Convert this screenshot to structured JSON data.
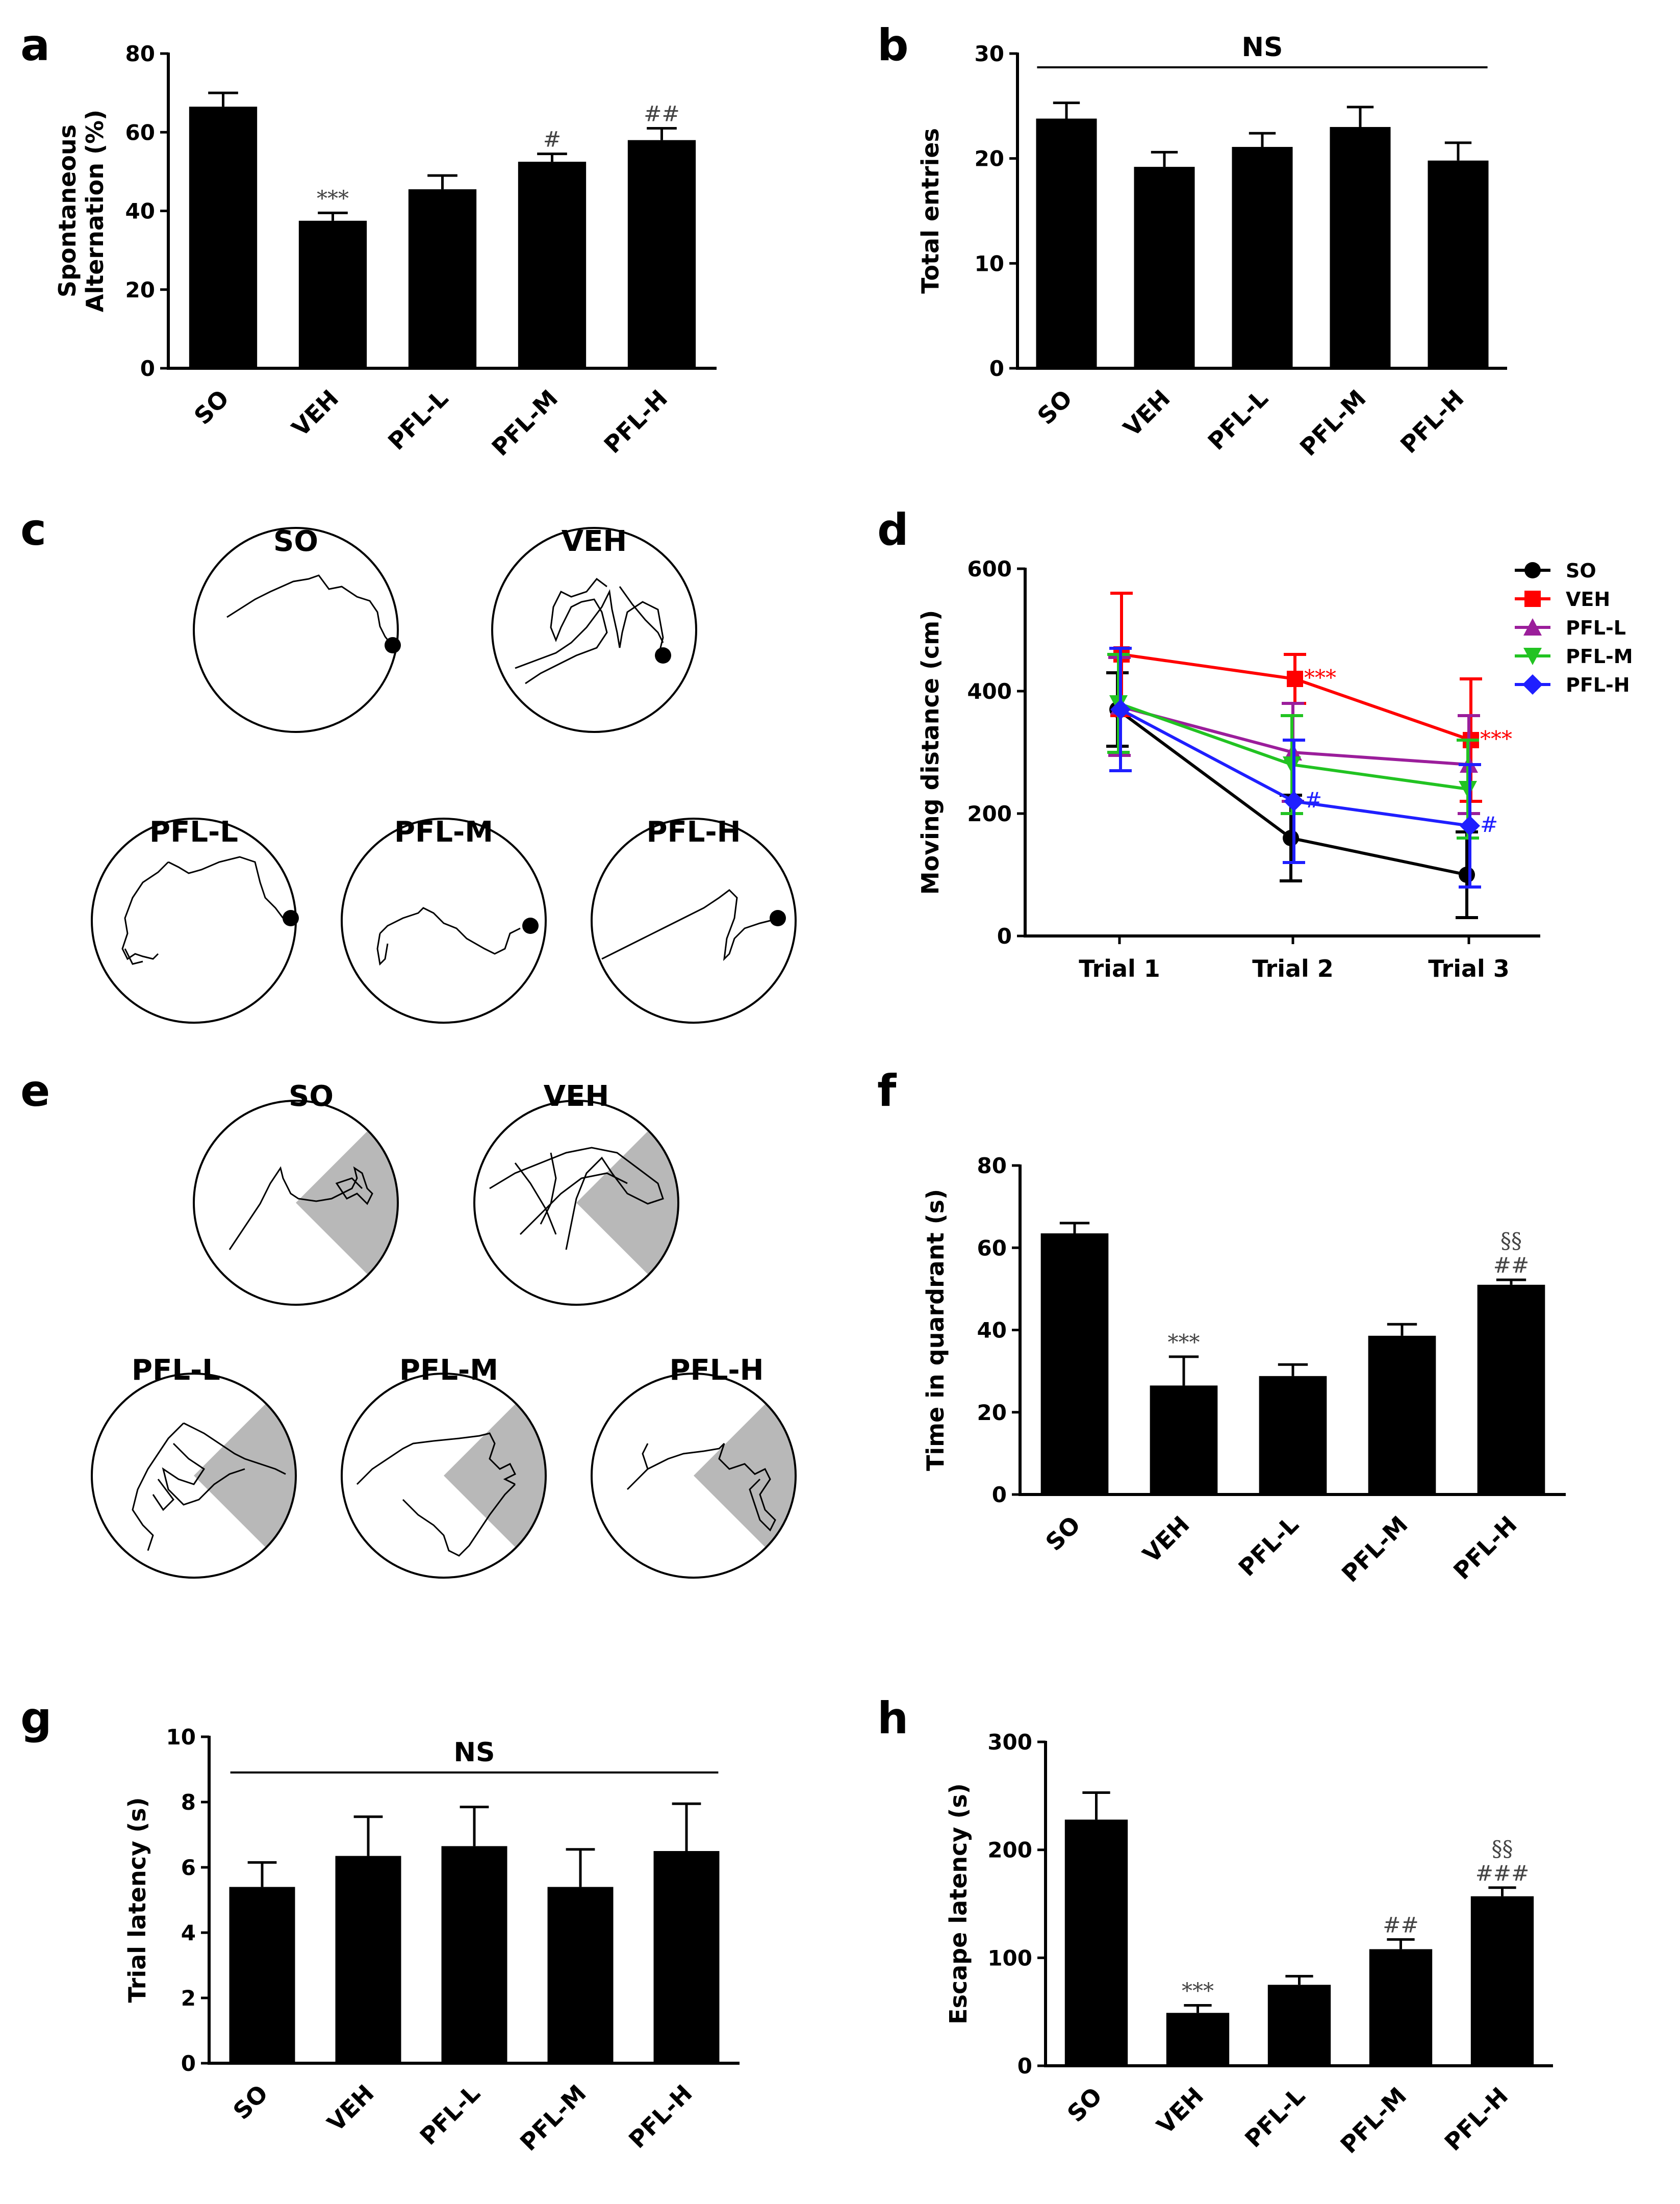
{
  "panel_labels": [
    "a",
    "b",
    "c",
    "d",
    "e",
    "f",
    "g",
    "h"
  ],
  "colors": {
    "ink": "#000000",
    "SO": "#000000",
    "VEH": "#ff0000",
    "PFL-L": "#9b1e9b",
    "PFL-M": "#22c322",
    "PFL-H": "#1f1fff",
    "quadrant": "#b8b8b8",
    "annotation": "#444444"
  },
  "chart_data": [
    {
      "id": "a",
      "type": "bar",
      "ylabel": "Spontaneous Alternation (%)",
      "ylabel_lines": [
        "Spontaneous",
        "Alternation (%)"
      ],
      "categories": [
        "SO",
        "VEH",
        "PFL-L",
        "PFL-M",
        "PFL-H"
      ],
      "values": [
        66.5,
        37.5,
        45.5,
        52.5,
        58
      ],
      "errors": [
        3.5,
        2,
        3.5,
        2,
        3
      ],
      "ylim": [
        0,
        80
      ],
      "yticks": [
        0,
        20,
        40,
        60,
        80
      ],
      "annotations": [
        {
          "index": 1,
          "lines": [
            "***"
          ]
        },
        {
          "index": 3,
          "lines": [
            "#"
          ]
        },
        {
          "index": 4,
          "lines": [
            "##"
          ]
        }
      ]
    },
    {
      "id": "b",
      "type": "bar",
      "ylabel": "Total entries",
      "ylabel_lines": [
        "Total entries"
      ],
      "categories": [
        "SO",
        "VEH",
        "PFL-L",
        "PFL-M",
        "PFL-H"
      ],
      "values": [
        23.8,
        19.2,
        21.1,
        23,
        19.8
      ],
      "errors": [
        1.5,
        1.4,
        1.3,
        1.9,
        1.7
      ],
      "ylim": [
        0,
        30
      ],
      "yticks": [
        0,
        10,
        20,
        30
      ],
      "annotations": [],
      "ns_label": "NS"
    },
    {
      "id": "d",
      "type": "line",
      "ylabel": "Moving distance (cm)",
      "categories": [
        "Trial 1",
        "Trial 2",
        "Trial 3"
      ],
      "ylim": [
        0,
        600
      ],
      "yticks": [
        0,
        200,
        400,
        600
      ],
      "legend_position": "top-right",
      "series": [
        {
          "name": "SO",
          "marker": "circle",
          "values": [
            370,
            160,
            100
          ],
          "errors": [
            60,
            70,
            70
          ]
        },
        {
          "name": "VEH",
          "marker": "square",
          "values": [
            460,
            420,
            320
          ],
          "errors": [
            100,
            40,
            100
          ]
        },
        {
          "name": "PFL-L",
          "marker": "triangle-up",
          "values": [
            375,
            300,
            280
          ],
          "errors": [
            80,
            80,
            80
          ]
        },
        {
          "name": "PFL-M",
          "marker": "triangle-down",
          "values": [
            380,
            280,
            240
          ],
          "errors": [
            80,
            80,
            80
          ]
        },
        {
          "name": "PFL-H",
          "marker": "diamond",
          "values": [
            370,
            220,
            180
          ],
          "errors": [
            100,
            100,
            100
          ]
        }
      ],
      "annotations": [
        {
          "series": "VEH",
          "index": 1,
          "text": "***"
        },
        {
          "series": "PFL-H",
          "index": 1,
          "text": "#"
        },
        {
          "series": "VEH",
          "index": 2,
          "text": "***"
        },
        {
          "series": "PFL-H",
          "index": 2,
          "text": "#"
        }
      ]
    },
    {
      "id": "f",
      "type": "bar",
      "ylabel": "Time in quardrant (s)",
      "ylabel_lines": [
        "Time in quardrant (s)"
      ],
      "categories": [
        "SO",
        "VEH",
        "PFL-L",
        "PFL-M",
        "PFL-H"
      ],
      "values": [
        63.5,
        26.5,
        28.8,
        38.6,
        51
      ],
      "errors": [
        2.5,
        7,
        2.8,
        2.8,
        1.2
      ],
      "ylim": [
        0,
        80
      ],
      "yticks": [
        0,
        20,
        40,
        60,
        80
      ],
      "annotations": [
        {
          "index": 1,
          "lines": [
            "***"
          ]
        },
        {
          "index": 4,
          "lines": [
            "§§",
            "##"
          ]
        }
      ]
    },
    {
      "id": "g",
      "type": "bar",
      "ylabel": "Trial latency (s)",
      "ylabel_lines": [
        "Trial latency (s)"
      ],
      "categories": [
        "SO",
        "VEH",
        "PFL-L",
        "PFL-M",
        "PFL-H"
      ],
      "values": [
        5.4,
        6.35,
        6.65,
        5.4,
        6.5
      ],
      "errors": [
        0.75,
        1.2,
        1.2,
        1.15,
        1.45
      ],
      "ylim": [
        0,
        10
      ],
      "yticks": [
        0,
        2,
        4,
        6,
        8,
        10
      ],
      "annotations": [],
      "ns_label": "NS"
    },
    {
      "id": "h",
      "type": "bar",
      "ylabel": "Escape latency (s)",
      "ylabel_lines": [
        "Escape latency (s)"
      ],
      "categories": [
        "SO",
        "VEH",
        "PFL-L",
        "PFL-M",
        "PFL-H"
      ],
      "values": [
        228,
        49,
        75,
        108,
        157
      ],
      "errors": [
        25,
        7,
        8,
        9,
        8
      ],
      "ylim": [
        0,
        300
      ],
      "yticks": [
        0,
        100,
        200,
        300
      ],
      "annotations": [
        {
          "index": 1,
          "lines": [
            "***"
          ]
        },
        {
          "index": 3,
          "lines": [
            "##"
          ]
        },
        {
          "index": 4,
          "lines": [
            "§§",
            "###"
          ]
        }
      ]
    }
  ],
  "track_panels": {
    "c": {
      "groups": [
        "SO",
        "VEH",
        "PFL-L",
        "PFL-M",
        "PFL-H"
      ],
      "platform": "filled circle"
    },
    "e": {
      "groups": [
        "SO",
        "VEH",
        "PFL-L",
        "PFL-M",
        "PFL-H"
      ],
      "target_quadrant": "shaded"
    }
  }
}
